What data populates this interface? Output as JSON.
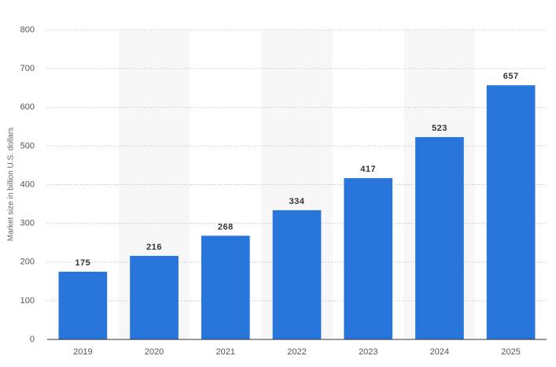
{
  "chart_data": {
    "type": "bar",
    "y_label": "Market size in billion U.S. dollars",
    "categories": [
      "2019",
      "2020",
      "2021",
      "2022",
      "2023",
      "2024",
      "2025"
    ],
    "values": [
      175,
      216,
      268,
      334,
      417,
      523,
      657
    ],
    "color": "#2876dc",
    "ylim": [
      0,
      800
    ],
    "yticks": [
      0,
      100,
      200,
      300,
      400,
      500,
      600,
      700,
      800
    ],
    "grid": true
  }
}
